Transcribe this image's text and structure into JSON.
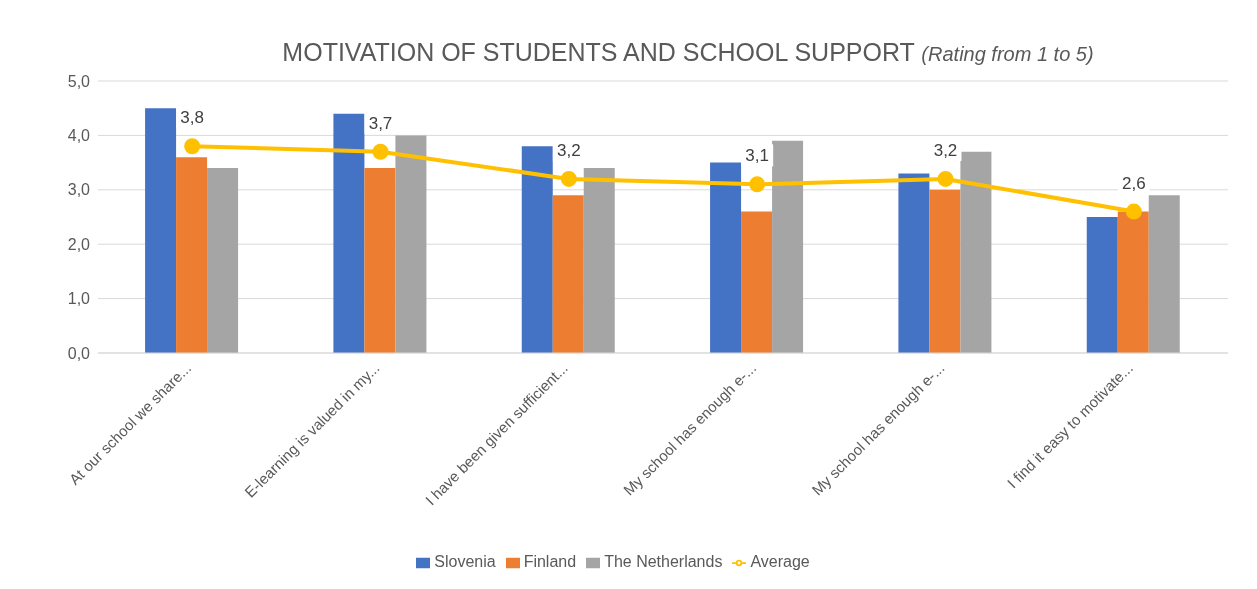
{
  "chart_data": {
    "type": "bar",
    "title": "MOTIVATION OF STUDENTS AND SCHOOL SUPPORT",
    "subtitle": "(Rating from 1 to 5)",
    "categories": [
      "At our school we share...",
      "E-learning is valued in my...",
      "I have been given sufficient...",
      "My school has enough e-...",
      "My school has enough e-...",
      "I find it easy to motivate..."
    ],
    "series": [
      {
        "name": "Slovenia",
        "color": "#4472c4",
        "values": [
          4.5,
          4.4,
          3.8,
          3.5,
          3.3,
          2.5
        ]
      },
      {
        "name": "Finland",
        "color": "#ed7d31",
        "values": [
          3.6,
          3.4,
          2.9,
          2.6,
          3.0,
          2.6
        ]
      },
      {
        "name": "The Netherlands",
        "color": "#a5a5a5",
        "values": [
          3.4,
          4.0,
          3.4,
          3.9,
          3.7,
          2.9
        ]
      },
      {
        "name": "Average",
        "type": "line",
        "color": "#ffc000",
        "values": [
          3.8,
          3.7,
          3.2,
          3.1,
          3.2,
          2.6
        ],
        "value_labels": [
          "3,8",
          "3,7",
          "3,2",
          "3,1",
          "3,2",
          "2,6"
        ]
      }
    ],
    "ylim": [
      0,
      5
    ],
    "yticks": [
      {
        "value": 0,
        "label": "0,0"
      },
      {
        "value": 1,
        "label": "1,0"
      },
      {
        "value": 2,
        "label": "2,0"
      },
      {
        "value": 3,
        "label": "3,0"
      },
      {
        "value": 4,
        "label": "4,0"
      },
      {
        "value": 5,
        "label": "5,0"
      }
    ],
    "grid": "y",
    "legend": "bottom",
    "marker": "circle",
    "line_style": "solid"
  }
}
